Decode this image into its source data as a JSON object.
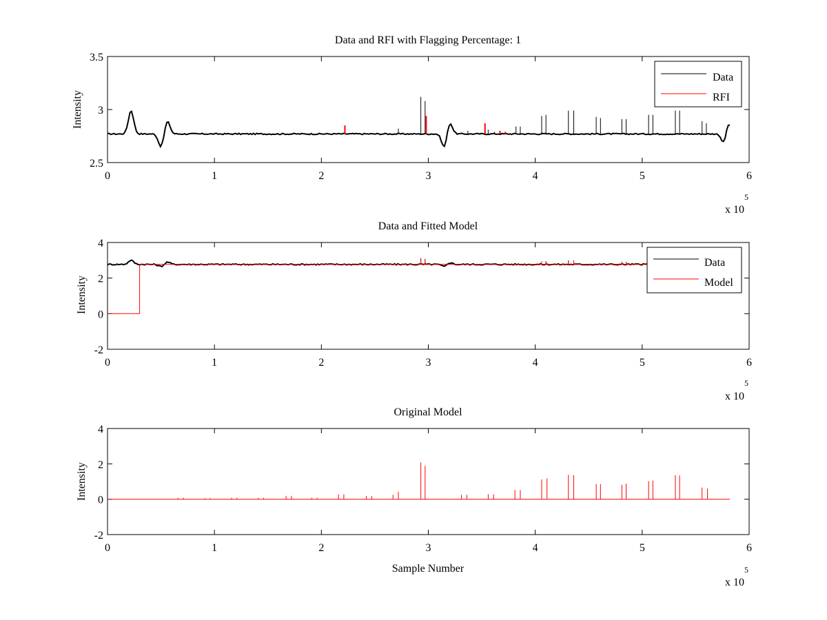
{
  "chart_data": [
    {
      "type": "line",
      "title": "Data and RFI with Flagging Percentage: 1",
      "xlabel": "",
      "ylabel": "Intensity",
      "xlim": [
        0,
        600000
      ],
      "ylim": [
        2.5,
        3.5
      ],
      "xticks": [
        0,
        1,
        2,
        3,
        4,
        5,
        6
      ],
      "yticks": [
        2.5,
        3,
        3.5
      ],
      "x_multiplier": "x 10",
      "x_multiplier_exp": "5",
      "grid": false,
      "legend_position": "top-right",
      "series": [
        {
          "name": "Data",
          "color": "#000000",
          "baseline": 2.77,
          "x_end": 582000,
          "features": [
            {
              "x": 22000,
              "y": 2.99,
              "kind": "bump"
            },
            {
              "x": 50000,
              "y": 2.65,
              "kind": "dip"
            },
            {
              "x": 56000,
              "y": 2.89,
              "kind": "bump"
            },
            {
              "x": 315000,
              "y": 2.64,
              "kind": "dip"
            },
            {
              "x": 320000,
              "y": 2.88,
              "kind": "bump"
            },
            {
              "x": 577000,
              "y": 2.65,
              "kind": "dip"
            },
            {
              "x": 580000,
              "y": 2.9,
              "kind": "bump"
            }
          ],
          "spikes": [
            {
              "x": 272000,
              "y": 2.82
            },
            {
              "x": 293000,
              "y": 3.12
            },
            {
              "x": 297000,
              "y": 3.08
            },
            {
              "x": 337000,
              "y": 2.8
            },
            {
              "x": 356000,
              "y": 2.81
            },
            {
              "x": 362000,
              "y": 2.79
            },
            {
              "x": 382000,
              "y": 2.84
            },
            {
              "x": 386000,
              "y": 2.84
            },
            {
              "x": 406000,
              "y": 2.94
            },
            {
              "x": 410000,
              "y": 2.95
            },
            {
              "x": 431000,
              "y": 2.99
            },
            {
              "x": 436000,
              "y": 2.99
            },
            {
              "x": 457000,
              "y": 2.93
            },
            {
              "x": 461000,
              "y": 2.92
            },
            {
              "x": 481000,
              "y": 2.91
            },
            {
              "x": 485000,
              "y": 2.91
            },
            {
              "x": 506000,
              "y": 2.95
            },
            {
              "x": 510000,
              "y": 2.95
            },
            {
              "x": 531000,
              "y": 2.99
            },
            {
              "x": 535000,
              "y": 2.99
            },
            {
              "x": 556000,
              "y": 2.89
            },
            {
              "x": 560000,
              "y": 2.87
            }
          ]
        },
        {
          "name": "RFI",
          "color": "#ff0000",
          "spikes": [
            {
              "x": 222000,
              "y": 2.85
            },
            {
              "x": 298000,
              "y": 2.94
            },
            {
              "x": 353000,
              "y": 2.87
            },
            {
              "x": 367000,
              "y": 2.8
            },
            {
              "x": 372000,
              "y": 2.79
            }
          ]
        }
      ]
    },
    {
      "type": "line",
      "title": "Data and Fitted Model",
      "xlabel": "",
      "ylabel": "Intensity",
      "xlim": [
        0,
        600000
      ],
      "ylim": [
        -2,
        4
      ],
      "xticks": [
        0,
        1,
        2,
        3,
        4,
        5,
        6
      ],
      "yticks": [
        -2,
        0,
        2,
        4
      ],
      "x_multiplier": "x 10",
      "x_multiplier_exp": "5",
      "grid": false,
      "legend_position": "top-right",
      "series": [
        {
          "name": "Data",
          "color": "#000000",
          "baseline": 2.77,
          "x_end": 582000,
          "features": [
            {
              "x": 22000,
              "y": 3.0,
              "kind": "bump"
            },
            {
              "x": 50000,
              "y": 2.65,
              "kind": "dip"
            },
            {
              "x": 56000,
              "y": 2.9,
              "kind": "bump"
            },
            {
              "x": 315000,
              "y": 2.64,
              "kind": "dip"
            },
            {
              "x": 320000,
              "y": 2.88,
              "kind": "bump"
            }
          ],
          "spikes": [
            {
              "x": 293000,
              "y": 3.12
            },
            {
              "x": 297000,
              "y": 3.08
            },
            {
              "x": 406000,
              "y": 2.94
            },
            {
              "x": 410000,
              "y": 2.95
            },
            {
              "x": 431000,
              "y": 2.99
            },
            {
              "x": 436000,
              "y": 2.99
            },
            {
              "x": 481000,
              "y": 2.91
            },
            {
              "x": 485000,
              "y": 2.91
            }
          ]
        },
        {
          "name": "Model",
          "color": "#ff0000",
          "steps": [
            {
              "x": 0,
              "y": 0.0
            },
            {
              "x": 30000,
              "y": 0.0
            },
            {
              "x": 30000,
              "y": 2.77
            },
            {
              "x": 582000,
              "y": 2.77
            }
          ],
          "spikes": [
            {
              "x": 293000,
              "y": 3.12
            },
            {
              "x": 297000,
              "y": 3.05
            },
            {
              "x": 406000,
              "y": 2.94
            },
            {
              "x": 410000,
              "y": 2.93
            },
            {
              "x": 431000,
              "y": 2.99
            },
            {
              "x": 436000,
              "y": 2.98
            },
            {
              "x": 481000,
              "y": 2.91
            },
            {
              "x": 485000,
              "y": 2.9
            }
          ]
        }
      ]
    },
    {
      "type": "line",
      "title": "Original Model",
      "xlabel": "Sample Number",
      "ylabel": "Intensity",
      "xlim": [
        0,
        600000
      ],
      "ylim": [
        -2,
        4
      ],
      "xticks": [
        0,
        1,
        2,
        3,
        4,
        5,
        6
      ],
      "yticks": [
        -2,
        0,
        2,
        4
      ],
      "x_multiplier": "x 10",
      "x_multiplier_exp": "5",
      "grid": false,
      "series": [
        {
          "name": "",
          "color": "#ff0000",
          "baseline": 0.0,
          "x_end": 582000,
          "spikes": [
            {
              "x": 66000,
              "y": 0.08
            },
            {
              "x": 71000,
              "y": 0.08
            },
            {
              "x": 91000,
              "y": 0.06
            },
            {
              "x": 96000,
              "y": 0.06
            },
            {
              "x": 116000,
              "y": 0.08
            },
            {
              "x": 121000,
              "y": 0.08
            },
            {
              "x": 141000,
              "y": 0.08
            },
            {
              "x": 146000,
              "y": 0.08
            },
            {
              "x": 167000,
              "y": 0.19
            },
            {
              "x": 172000,
              "y": 0.19
            },
            {
              "x": 191000,
              "y": 0.08
            },
            {
              "x": 196000,
              "y": 0.08
            },
            {
              "x": 216000,
              "y": 0.28
            },
            {
              "x": 221000,
              "y": 0.28
            },
            {
              "x": 242000,
              "y": 0.18
            },
            {
              "x": 247000,
              "y": 0.18
            },
            {
              "x": 267000,
              "y": 0.25
            },
            {
              "x": 272000,
              "y": 0.42
            },
            {
              "x": 293000,
              "y": 2.08
            },
            {
              "x": 297000,
              "y": 1.88
            },
            {
              "x": 331000,
              "y": 0.25
            },
            {
              "x": 336000,
              "y": 0.25
            },
            {
              "x": 356000,
              "y": 0.28
            },
            {
              "x": 361000,
              "y": 0.28
            },
            {
              "x": 381000,
              "y": 0.52
            },
            {
              "x": 386000,
              "y": 0.52
            },
            {
              "x": 406000,
              "y": 1.12
            },
            {
              "x": 411000,
              "y": 1.17
            },
            {
              "x": 431000,
              "y": 1.38
            },
            {
              "x": 436000,
              "y": 1.36
            },
            {
              "x": 457000,
              "y": 0.86
            },
            {
              "x": 461000,
              "y": 0.85
            },
            {
              "x": 481000,
              "y": 0.82
            },
            {
              "x": 485000,
              "y": 0.88
            },
            {
              "x": 506000,
              "y": 1.02
            },
            {
              "x": 510000,
              "y": 1.06
            },
            {
              "x": 531000,
              "y": 1.36
            },
            {
              "x": 535000,
              "y": 1.34
            },
            {
              "x": 556000,
              "y": 0.66
            },
            {
              "x": 561000,
              "y": 0.6
            }
          ]
        }
      ]
    }
  ]
}
